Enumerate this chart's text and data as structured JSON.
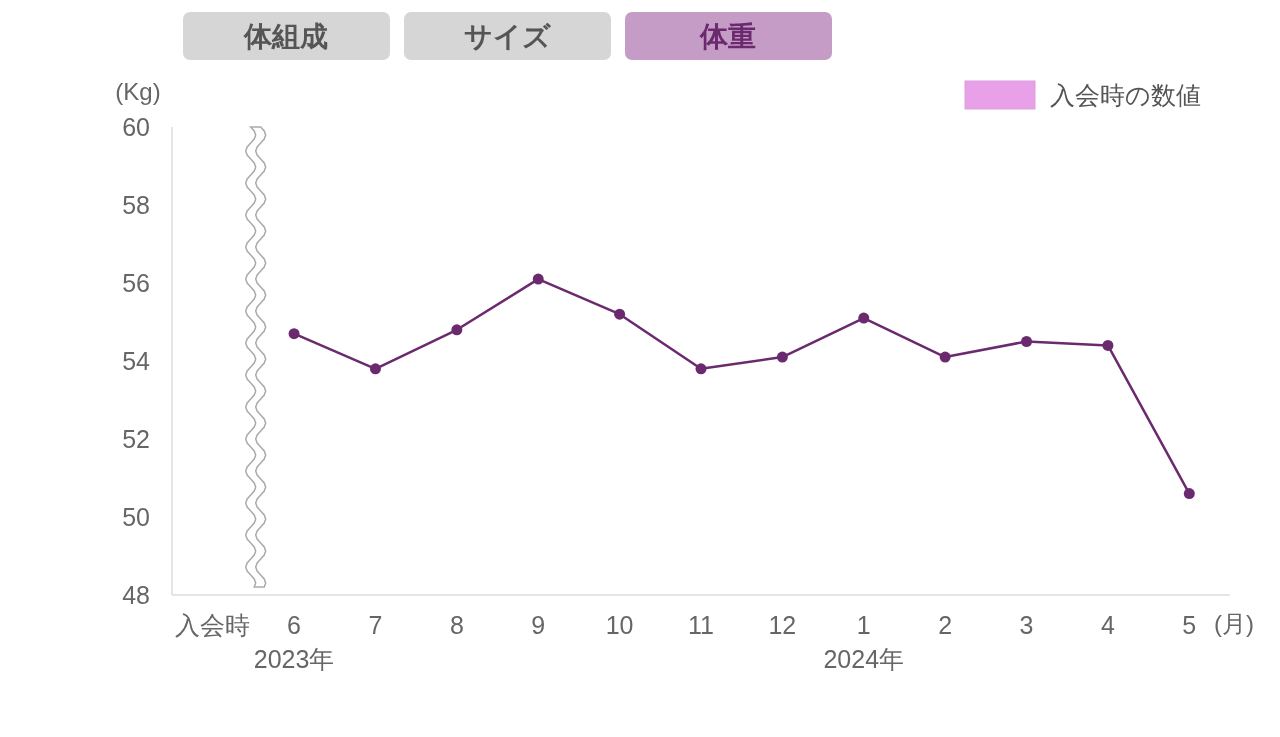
{
  "chart_data": {
    "type": "line",
    "annotations": [
      "体組成",
      "サイズ",
      "体重"
    ],
    "ylabel": "(Kg)",
    "xlabel": "(月)",
    "categories": [
      "入会時",
      "6\n2023年",
      "7",
      "8",
      "9",
      "10",
      "11",
      "12",
      "1\n2024年",
      "2",
      "3",
      "4",
      "5"
    ],
    "series": [
      {
        "name": "入会時の数値",
        "color": "#e8a0e8",
        "values": [
          null,
          null,
          null,
          null,
          null,
          null,
          null,
          null,
          null,
          null,
          null,
          null,
          null
        ]
      },
      {
        "color": "#6b2a6e",
        "values": [
          null,
          54.7,
          53.8,
          54.8,
          56.1,
          55.2,
          53.8,
          54.1,
          55.1,
          54.1,
          54.5,
          54.4,
          50.6
        ]
      }
    ],
    "ylim": [
      48,
      60
    ],
    "yticks": [
      48,
      50,
      52,
      54,
      56,
      58,
      60
    ],
    "grid": false,
    "legend": "top right",
    "marker": "circle",
    "line_style": "solid"
  }
}
